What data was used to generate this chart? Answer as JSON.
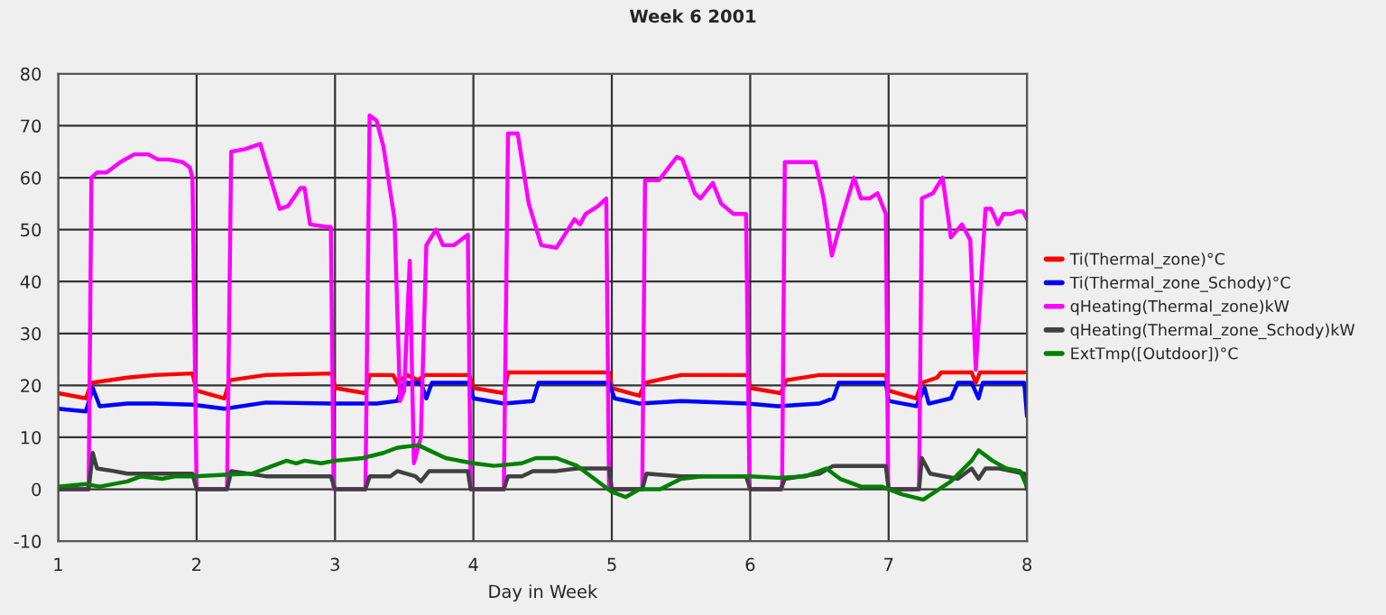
{
  "chart_data": {
    "type": "line",
    "title": "Week 6 2001",
    "xlabel": "Day in Week",
    "xlim": [
      1,
      8
    ],
    "xticks": [
      1,
      2,
      3,
      4,
      5,
      6,
      7,
      8
    ],
    "ylim": [
      -10,
      80
    ],
    "yticks": [
      -10,
      0,
      10,
      20,
      30,
      40,
      50,
      60,
      70,
      80
    ],
    "grid": true,
    "legend": "right",
    "marker": "none",
    "line_style": "solid",
    "series": [
      {
        "name": "Ti(Thermal_zone)°C",
        "color": "#ff0000",
        "x": [
          1.0,
          1.2,
          1.24,
          1.5,
          1.7,
          1.97,
          2.0,
          2.2,
          2.24,
          2.5,
          2.98,
          3.0,
          3.22,
          3.25,
          3.42,
          3.45,
          3.52,
          3.6,
          3.65,
          3.97,
          4.0,
          4.22,
          4.25,
          4.98,
          5.0,
          5.2,
          5.24,
          5.5,
          5.98,
          6.0,
          6.22,
          6.26,
          6.5,
          6.98,
          7.0,
          7.2,
          7.24,
          7.35,
          7.38,
          7.6,
          7.63,
          7.66,
          7.98
        ],
        "values": [
          18.5,
          17.5,
          20.5,
          21.5,
          22,
          22.3,
          19,
          17.5,
          21,
          22,
          22.3,
          19.5,
          18.5,
          22,
          22,
          20.5,
          22,
          21,
          22,
          22,
          19.5,
          18.5,
          22.5,
          22.5,
          19.5,
          18,
          20.5,
          22,
          22,
          19.5,
          18.5,
          21,
          22,
          22,
          19,
          17.5,
          20.5,
          21.5,
          22.5,
          22.5,
          20.5,
          22.5,
          22.5
        ]
      },
      {
        "name": "Ti(Thermal_zone_Schody)°C",
        "color": "#0000ff",
        "x": [
          1.0,
          1.2,
          1.25,
          1.3,
          1.5,
          1.7,
          1.97,
          2.2,
          2.5,
          2.98,
          3.3,
          3.45,
          3.5,
          3.62,
          3.66,
          3.7,
          3.97,
          4.0,
          4.22,
          4.43,
          4.47,
          4.98,
          5.02,
          5.2,
          5.5,
          5.98,
          6.2,
          6.5,
          6.6,
          6.64,
          6.98,
          7.0,
          7.2,
          7.26,
          7.29,
          7.45,
          7.5,
          7.6,
          7.65,
          7.68,
          7.98,
          8.0
        ],
        "values": [
          15.5,
          15,
          19.5,
          16,
          16.5,
          16.5,
          16.3,
          15.5,
          16.7,
          16.5,
          16.5,
          17,
          20.5,
          20.5,
          17.5,
          20.5,
          20.5,
          17.5,
          16.5,
          17,
          20.5,
          20.5,
          17.5,
          16.5,
          17,
          16.5,
          16,
          16.5,
          17.5,
          20.5,
          20.5,
          17,
          16,
          19.5,
          16.5,
          17.5,
          20.5,
          20.5,
          17.5,
          20.5,
          20.5,
          14
        ]
      },
      {
        "name": "qHeating(Thermal_zone)kW",
        "color": "#ff00ff",
        "x": [
          1.0,
          1.22,
          1.24,
          1.28,
          1.35,
          1.45,
          1.55,
          1.65,
          1.72,
          1.8,
          1.9,
          1.95,
          1.97,
          2.0,
          2.22,
          2.25,
          2.35,
          2.46,
          2.6,
          2.66,
          2.75,
          2.78,
          2.82,
          2.95,
          2.97,
          2.99,
          3.22,
          3.25,
          3.3,
          3.35,
          3.43,
          3.47,
          3.5,
          3.54,
          3.57,
          3.62,
          3.66,
          3.73,
          3.78,
          3.86,
          3.96,
          3.98,
          4.22,
          4.25,
          4.32,
          4.4,
          4.49,
          4.6,
          4.66,
          4.73,
          4.77,
          4.81,
          4.9,
          4.96,
          4.98,
          5.22,
          5.24,
          5.34,
          5.47,
          5.51,
          5.6,
          5.64,
          5.73,
          5.79,
          5.88,
          5.97,
          5.995,
          6.23,
          6.25,
          6.47,
          6.53,
          6.59,
          6.66,
          6.75,
          6.8,
          6.86,
          6.92,
          6.98,
          6.997,
          7.22,
          7.24,
          7.32,
          7.39,
          7.45,
          7.53,
          7.59,
          7.63,
          7.7,
          7.74,
          7.79,
          7.83,
          7.89,
          7.93,
          7.97,
          8.0
        ],
        "values": [
          0,
          0,
          60,
          61,
          61,
          63,
          64.5,
          64.5,
          63.5,
          63.5,
          63,
          62,
          60,
          0,
          0,
          65,
          65.5,
          66.5,
          54,
          54.5,
          58,
          58,
          51,
          50.5,
          50.5,
          0,
          0,
          72,
          71,
          66,
          52,
          17,
          19,
          44,
          5,
          10,
          47,
          50,
          47,
          47,
          49,
          0,
          0,
          68.5,
          68.5,
          55,
          47,
          46.5,
          49,
          52,
          51,
          53,
          54.5,
          56,
          0,
          0,
          59.5,
          59.5,
          64,
          63.5,
          57,
          56,
          59,
          55,
          53,
          53,
          0,
          0,
          63,
          63,
          56,
          45,
          52,
          60,
          56,
          56,
          57,
          53,
          0,
          0,
          56,
          57,
          60,
          48.5,
          51,
          48,
          23,
          54,
          54,
          51,
          53,
          53,
          53.5,
          53.5,
          52
        ]
      },
      {
        "name": "qHeating(Thermal_zone_Schody)kW",
        "color": "#404040",
        "x": [
          1.0,
          1.22,
          1.25,
          1.28,
          1.4,
          1.5,
          1.7,
          1.97,
          2.0,
          2.22,
          2.25,
          2.5,
          2.97,
          3.0,
          3.22,
          3.25,
          3.4,
          3.45,
          3.58,
          3.62,
          3.68,
          3.96,
          3.98,
          4.22,
          4.25,
          4.35,
          4.43,
          4.6,
          4.75,
          4.98,
          5.0,
          5.22,
          5.25,
          5.5,
          5.97,
          6.0,
          6.22,
          6.25,
          6.5,
          6.6,
          6.98,
          7.0,
          7.22,
          7.24,
          7.3,
          7.5,
          7.6,
          7.65,
          7.7,
          7.8,
          7.98,
          8.0
        ],
        "values": [
          0,
          0,
          7,
          4,
          3.5,
          3,
          3,
          3,
          0,
          0,
          3.5,
          2.5,
          2.5,
          0,
          0,
          2.5,
          2.5,
          3.5,
          2.5,
          1.5,
          3.5,
          3.5,
          0,
          0,
          2.5,
          2.5,
          3.5,
          3.5,
          4,
          4,
          0,
          0,
          3,
          2.5,
          2.5,
          0,
          0,
          2,
          3,
          4.5,
          4.5,
          0,
          0,
          6,
          3,
          2,
          4,
          2,
          4,
          4,
          3,
          0
        ]
      },
      {
        "name": "ExtTmp([Outdoor])°C",
        "color": "#008000",
        "x": [
          1.0,
          1.2,
          1.3,
          1.5,
          1.6,
          1.75,
          1.85,
          1.98,
          2.2,
          2.4,
          2.55,
          2.65,
          2.72,
          2.78,
          2.9,
          3.0,
          3.2,
          3.35,
          3.45,
          3.6,
          3.8,
          4.0,
          4.15,
          4.35,
          4.45,
          4.6,
          4.75,
          4.85,
          5.0,
          5.1,
          5.2,
          5.35,
          5.5,
          5.65,
          5.8,
          6.0,
          6.2,
          6.4,
          6.55,
          6.65,
          6.8,
          6.95,
          7.1,
          7.25,
          7.45,
          7.6,
          7.65,
          7.75,
          7.85,
          7.95,
          8.0
        ],
        "values": [
          0.5,
          1,
          0.5,
          1.5,
          2.5,
          2,
          2.5,
          2.5,
          2.8,
          3,
          4.5,
          5.5,
          5,
          5.5,
          5,
          5.5,
          6,
          7,
          8,
          8.5,
          6,
          5,
          4.5,
          5,
          6,
          6,
          4.5,
          2.5,
          -0.5,
          -1.5,
          0,
          0,
          2,
          2.5,
          2.5,
          2.5,
          2.2,
          2.5,
          4,
          2,
          0.5,
          0.5,
          -1,
          -2,
          1.5,
          5.5,
          7.5,
          5.5,
          4,
          3.5,
          0.5
        ]
      }
    ]
  }
}
